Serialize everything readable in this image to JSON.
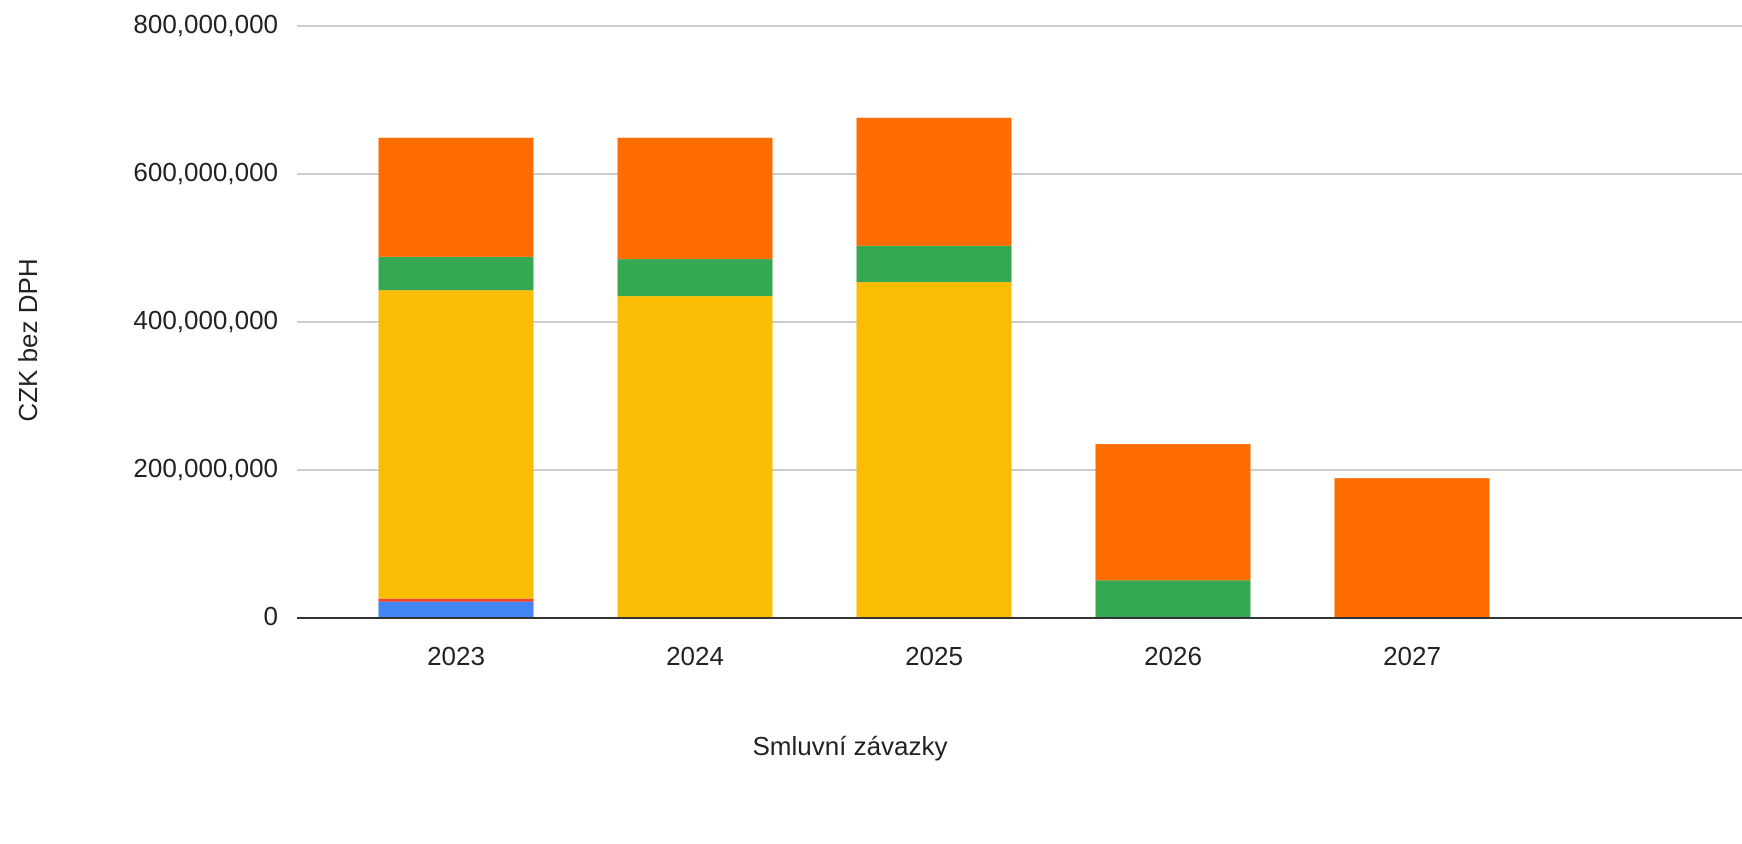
{
  "chart_data": {
    "type": "stacked_bar",
    "x_label": "Smluvní závazky",
    "y_label": "CZK bez DPH",
    "categories": [
      "2023",
      "2024",
      "2025",
      "2026",
      "2027"
    ],
    "series": [
      {
        "color": "#4285f4",
        "values": [
          22000000,
          0,
          0,
          0,
          0
        ]
      },
      {
        "color": "#ea4335",
        "values": [
          4000000,
          0,
          0,
          0,
          0
        ]
      },
      {
        "color": "#fbbc04",
        "values": [
          417000000,
          435000000,
          454000000,
          0,
          0
        ]
      },
      {
        "color": "#34a853",
        "values": [
          45000000,
          50000000,
          49000000,
          51000000,
          0
        ]
      },
      {
        "color": "#ff6d01",
        "values": [
          161000000,
          164000000,
          173000000,
          184000000,
          189000000
        ]
      }
    ],
    "ylim": [
      0,
      800000000
    ],
    "yticks": [
      0,
      {
        "value": 200000000,
        "label": "200,000,000"
      },
      {
        "value": 400000000,
        "label": "400,000,000"
      },
      {
        "value": 600000000,
        "label": "600,000,000"
      },
      {
        "value": 800000000,
        "label": "800,000,000"
      }
    ],
    "grid": true
  }
}
